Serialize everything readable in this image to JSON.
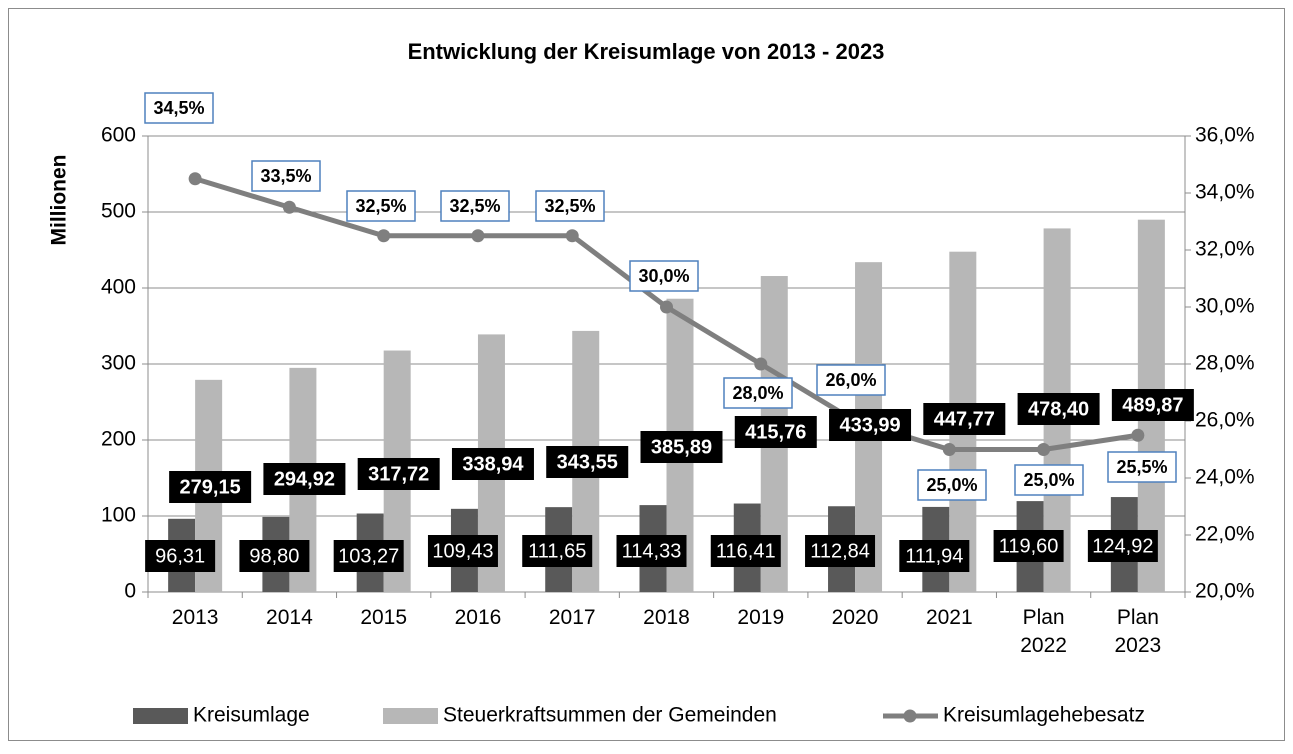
{
  "chart_data": {
    "type": "bar_line",
    "title": "Entwicklung der Kreisumlage von 2013 - 2023",
    "y_label": "Millionen",
    "categories": [
      "2013",
      "2014",
      "2015",
      "2016",
      "2017",
      "2018",
      "2019",
      "2020",
      "2021",
      "Plan 2022",
      "Plan 2023"
    ],
    "series": [
      {
        "name": "Kreisumlage",
        "type": "bar",
        "color": "#595959",
        "values": [
          96.31,
          98.8,
          103.27,
          109.43,
          111.65,
          114.33,
          116.41,
          112.84,
          111.94,
          119.6,
          124.92
        ],
        "value_labels": [
          "96,31",
          "98,80",
          "103,27",
          "109,43",
          "111,65",
          "114,33",
          "116,41",
          "112,84",
          "111,94",
          "119,60",
          "124,92"
        ]
      },
      {
        "name": "Steuerkraftsummen der Gemeinden",
        "type": "bar",
        "color": "#b7b7b7",
        "values": [
          279.15,
          294.92,
          317.72,
          338.94,
          343.55,
          385.89,
          415.76,
          433.99,
          447.77,
          478.4,
          489.87
        ],
        "value_labels": [
          "279,15",
          "294,92",
          "317,72",
          "338,94",
          "343,55",
          "385,89",
          "415,76",
          "433,99",
          "447,77",
          "478,40",
          "489,87"
        ]
      },
      {
        "name": "Kreisumlagehebesatz",
        "type": "line",
        "axis": "y2",
        "color": "#7f7f7f",
        "values": [
          34.5,
          33.5,
          32.5,
          32.5,
          32.5,
          30.0,
          28.0,
          26.0,
          25.0,
          25.0,
          25.5
        ],
        "value_labels": [
          "34,5%",
          "33,5%",
          "32,5%",
          "32,5%",
          "32,5%",
          "30,0%",
          "28,0%",
          "26,0%",
          "25,0%",
          "25,0%",
          "25,5%"
        ]
      }
    ],
    "ylim": [
      0,
      600
    ],
    "yticks": [
      0,
      100,
      200,
      300,
      400,
      500,
      600
    ],
    "y2lim": [
      20,
      36
    ],
    "y2ticks": [
      {
        "value": 20,
        "label": "20,0%"
      },
      {
        "value": 22,
        "label": "22,0%"
      },
      {
        "value": 24,
        "label": "24,0%"
      },
      {
        "value": 26,
        "label": "26,0%"
      },
      {
        "value": 28,
        "label": "28,0%"
      },
      {
        "value": 30,
        "label": "30,0%"
      },
      {
        "value": 32,
        "label": "32,0%"
      },
      {
        "value": 34,
        "label": "34,0%"
      },
      {
        "value": 36,
        "label": "36,0%"
      }
    ],
    "grid": true,
    "legend": "bottom"
  }
}
